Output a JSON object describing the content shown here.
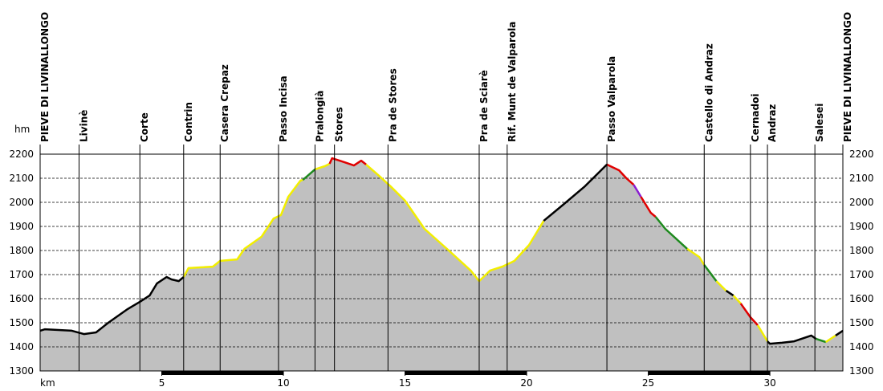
{
  "chart_data": {
    "type": "area",
    "x_label": "km",
    "y_label": "hm",
    "xlim": [
      0,
      33
    ],
    "ylim": [
      1300,
      2200
    ],
    "xticks": [
      5,
      10,
      15,
      20,
      25,
      30
    ],
    "yticks": [
      1300,
      1400,
      1500,
      1600,
      1700,
      1800,
      1900,
      2000,
      2100,
      2200
    ],
    "grid": true,
    "fill": "#c0c0c0",
    "waypoints": [
      {
        "label": "PIEVE DI LIVINALLONGO",
        "x": 0
      },
      {
        "label": "Livinè",
        "x": 1.6
      },
      {
        "label": "Corte",
        "x": 4.1
      },
      {
        "label": "Contrin",
        "x": 5.9
      },
      {
        "label": "Casera Crepaz",
        "x": 7.4
      },
      {
        "label": "Passo Incisa",
        "x": 9.8
      },
      {
        "label": "Pralongià",
        "x": 11.3
      },
      {
        "label": "Stores",
        "x": 12.1
      },
      {
        "label": "Pra de Stores",
        "x": 14.3
      },
      {
        "label": "Pra de Sciarè",
        "x": 18.05
      },
      {
        "label": "Rif. Munt de Valparola",
        "x": 19.2
      },
      {
        "label": "Passo Valparola",
        "x": 23.3
      },
      {
        "label": "Castello di Andraz",
        "x": 27.3
      },
      {
        "label": "Cernadoi",
        "x": 29.2
      },
      {
        "label": "Andraz",
        "x": 29.9
      },
      {
        "label": "Salesei",
        "x": 31.85
      },
      {
        "label": "PIEVE DI LIVINALLONGO",
        "x": 33
      }
    ],
    "series": [
      {
        "color": "#000000",
        "x": [
          0,
          0.2,
          1.3,
          1.8,
          2.3,
          2.8,
          3.6,
          4.1,
          4.5,
          4.8,
          5.2,
          5.4,
          5.7,
          5.9
        ],
        "values": [
          1467,
          1473,
          1467,
          1453,
          1460,
          1500,
          1557,
          1587,
          1613,
          1663,
          1690,
          1680,
          1673,
          1690
        ]
      },
      {
        "color": "#f2ee00",
        "x": [
          5.9,
          6.1,
          6.6,
          7.1,
          7.4,
          8.1,
          8.4,
          9.1,
          9.6,
          9.9,
          10.2,
          10.7,
          10.8
        ],
        "values": [
          1690,
          1727,
          1730,
          1733,
          1757,
          1763,
          1807,
          1857,
          1933,
          1947,
          2023,
          2090,
          2093
        ]
      },
      {
        "color": "#1e8a1e",
        "x": [
          10.8,
          11.3
        ],
        "values": [
          2093,
          2137
        ]
      },
      {
        "color": "#f2ee00",
        "x": [
          11.3,
          11.7,
          11.9
        ],
        "values": [
          2137,
          2150,
          2160
        ]
      },
      {
        "color": "#e00000",
        "x": [
          11.9,
          12.0,
          12.5,
          12.9,
          13.2,
          13.4
        ],
        "values": [
          2160,
          2183,
          2167,
          2153,
          2173,
          2157
        ]
      },
      {
        "color": "#f2ee00",
        "x": [
          13.4,
          13.9,
          14.4,
          15.0,
          15.8,
          16.8,
          17.7,
          18.05,
          18.5,
          19.0,
          19.5,
          20.1,
          20.7
        ],
        "values": [
          2157,
          2113,
          2067,
          2007,
          1890,
          1800,
          1717,
          1673,
          1717,
          1733,
          1757,
          1823,
          1923
        ]
      },
      {
        "color": "#000000",
        "x": [
          20.7,
          21.5,
          22.4,
          23.3
        ],
        "values": [
          1923,
          1990,
          2067,
          2157
        ]
      },
      {
        "color": "#e00000",
        "x": [
          23.3,
          23.8,
          24.1,
          24.4
        ],
        "values": [
          2157,
          2133,
          2100,
          2073
        ]
      },
      {
        "color": "#8a1ed0",
        "x": [
          24.4,
          24.7
        ],
        "values": [
          2073,
          2023
        ]
      },
      {
        "color": "#e00000",
        "x": [
          24.7,
          25.1,
          25.3
        ],
        "values": [
          2023,
          1957,
          1940
        ]
      },
      {
        "color": "#1e8a1e",
        "x": [
          25.3,
          25.7,
          26.6
        ],
        "values": [
          1940,
          1890,
          1807
        ]
      },
      {
        "color": "#f2ee00",
        "x": [
          26.6,
          27.1,
          27.3
        ],
        "values": [
          1807,
          1773,
          1740
        ]
      },
      {
        "color": "#1e8a1e",
        "x": [
          27.3,
          27.8
        ],
        "values": [
          1740,
          1673
        ]
      },
      {
        "color": "#f2ee00",
        "x": [
          27.8,
          28.2
        ],
        "values": [
          1673,
          1633
        ]
      },
      {
        "color": "#000000",
        "x": [
          28.2,
          28.5
        ],
        "values": [
          1633,
          1613
        ]
      },
      {
        "color": "#f2ee00",
        "x": [
          28.5,
          28.8
        ],
        "values": [
          1613,
          1580
        ]
      },
      {
        "color": "#e00000",
        "x": [
          28.8,
          29.2,
          29.5
        ],
        "values": [
          1580,
          1523,
          1490
        ]
      },
      {
        "color": "#f2ee00",
        "x": [
          29.5,
          29.9
        ],
        "values": [
          1490,
          1423
        ]
      },
      {
        "color": "#000000",
        "x": [
          29.9,
          30.0,
          30.5,
          31.0,
          31.7,
          31.9
        ],
        "values": [
          1423,
          1413,
          1417,
          1423,
          1447,
          1433
        ]
      },
      {
        "color": "#1e8a1e",
        "x": [
          31.9,
          32.3
        ],
        "values": [
          1433,
          1420
        ]
      },
      {
        "color": "#f2ee00",
        "x": [
          32.3,
          32.7
        ],
        "values": [
          1420,
          1447
        ]
      },
      {
        "color": "#000000",
        "x": [
          32.7,
          33.0
        ],
        "values": [
          1447,
          1467
        ]
      }
    ]
  }
}
